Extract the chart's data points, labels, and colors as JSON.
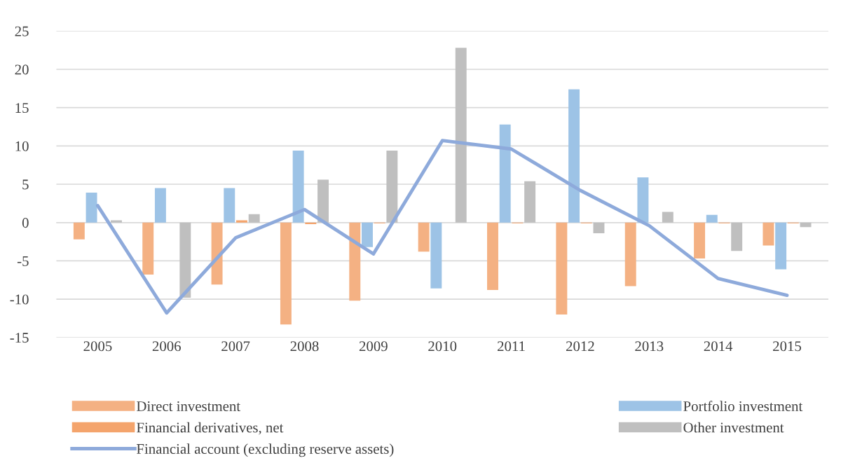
{
  "chart_data": {
    "type": "bar",
    "categories": [
      "2005",
      "2006",
      "2007",
      "2008",
      "2009",
      "2010",
      "2011",
      "2012",
      "2013",
      "2014",
      "2015"
    ],
    "series": [
      {
        "name": "Direct investment",
        "color": "#f4b183",
        "values": [
          -2.2,
          -6.8,
          -8.1,
          -13.3,
          -10.2,
          -3.8,
          -8.8,
          -12.0,
          -8.3,
          -4.7,
          -3.0
        ]
      },
      {
        "name": "Portfolio investment",
        "color": "#9dc3e6",
        "values": [
          3.9,
          4.5,
          4.5,
          9.4,
          -3.2,
          -8.6,
          12.8,
          17.4,
          5.9,
          1.0,
          -6.1
        ]
      },
      {
        "name": "Financial derivatives, net",
        "color": "#f4a46c",
        "values": [
          0,
          0,
          0.3,
          -0.2,
          -0.1,
          0,
          -0.1,
          -0.1,
          0,
          -0.1,
          -0.1
        ]
      },
      {
        "name": "Other investment",
        "color": "#bfbfbf",
        "values": [
          0.3,
          -9.8,
          1.1,
          5.6,
          9.4,
          22.8,
          5.4,
          -1.4,
          1.4,
          -3.7,
          -0.6
        ]
      },
      {
        "name": "Financial account (excluding reserve assets)",
        "type": "line",
        "color": "#8eaadb",
        "values": [
          2.2,
          -11.8,
          -2.0,
          1.7,
          -4.1,
          10.7,
          9.6,
          4.2,
          -0.4,
          -7.3,
          -9.5
        ]
      }
    ],
    "ylim": [
      -15,
      25
    ],
    "yticks": [
      -15,
      -10,
      -5,
      0,
      5,
      10,
      15,
      20,
      25
    ],
    "grid": "y",
    "legend": "bottom"
  }
}
